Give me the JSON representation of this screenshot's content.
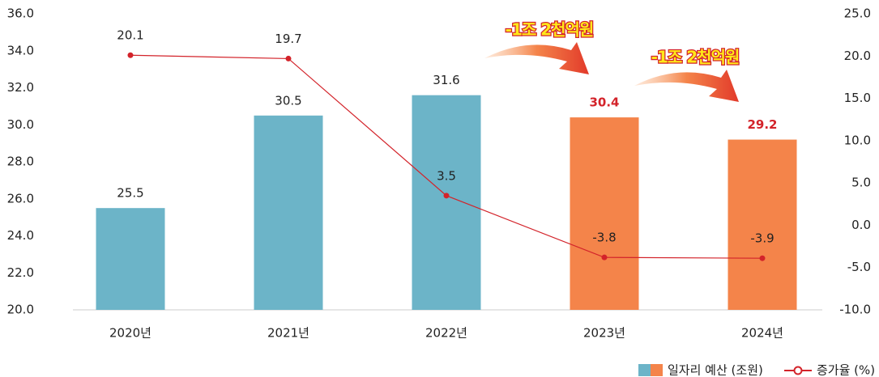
{
  "chart_data": {
    "type": "bar",
    "categories": [
      "2020년",
      "2021년",
      "2022년",
      "2023년",
      "2024년"
    ],
    "series": [
      {
        "name": "일자리 예산 (조원)",
        "type": "bar",
        "colors": [
          "#6cb4c8",
          "#6cb4c8",
          "#6cb4c8",
          "#f4844a",
          "#f4844a"
        ],
        "value_label_colors": [
          "#222222",
          "#222222",
          "#222222",
          "#d3232a",
          "#d3232a"
        ],
        "values": [
          25.5,
          30.5,
          31.6,
          30.4,
          29.2
        ]
      },
      {
        "name": "증가율 (%)",
        "type": "line",
        "axis": "y2",
        "color": "#d3232a",
        "values": [
          20.1,
          19.7,
          3.5,
          -3.8,
          -3.9
        ]
      }
    ],
    "ylim": [
      20,
      36
    ],
    "yticks": [
      {
        "value": 20,
        "label": "20.0"
      },
      {
        "value": 22,
        "label": "22.0"
      },
      {
        "value": 24,
        "label": "24.0"
      },
      {
        "value": 26,
        "label": "26.0"
      },
      {
        "value": 28,
        "label": "28.0"
      },
      {
        "value": 30,
        "label": "30.0"
      },
      {
        "value": 32,
        "label": "32.0"
      },
      {
        "value": 34,
        "label": "34.0"
      },
      {
        "value": 36,
        "label": "36.0"
      }
    ],
    "y2lim": [
      -10,
      25
    ],
    "y2ticks": [
      {
        "value": -10,
        "label": "-10.0"
      },
      {
        "value": -5,
        "label": "-5.0"
      },
      {
        "value": 0,
        "label": "0.0"
      },
      {
        "value": 5,
        "label": "5.0"
      },
      {
        "value": 10,
        "label": "10.0"
      },
      {
        "value": 15,
        "label": "15.0"
      },
      {
        "value": 20,
        "label": "20.0"
      },
      {
        "value": 25,
        "label": "25.0"
      }
    ],
    "annotations": [
      "-1조 2천억원",
      "-1조 2천억원"
    ],
    "legend": "bottom-right"
  }
}
